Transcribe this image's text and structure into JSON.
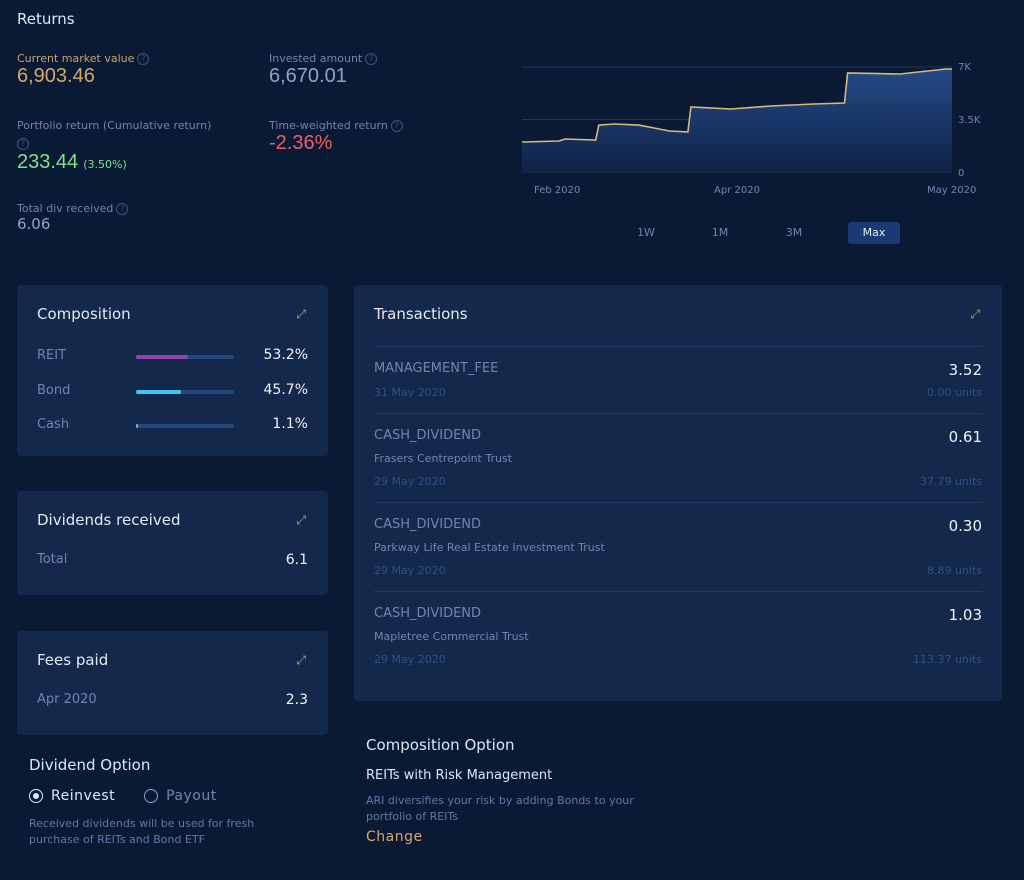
{
  "returns": {
    "title": "Returns",
    "current_market_value": {
      "label": "Current market value",
      "value": "6,903.46"
    },
    "invested_amount": {
      "label": "Invested amount",
      "value": "6,670.01"
    },
    "portfolio_return": {
      "label": "Portfolio return (Cumulative return)",
      "value": "233.44",
      "percent": "(3.50%)"
    },
    "time_weighted_return": {
      "label": "Time-weighted return",
      "value": "-2.36%"
    },
    "total_div": {
      "label": "Total div received",
      "value": "6.06"
    },
    "help_icon": "?"
  },
  "chart_data": {
    "type": "area",
    "x_tick_labels": [
      "Feb 2020",
      "Apr 2020",
      "May 2020"
    ],
    "y_tick_labels": [
      "7K",
      "3.5K",
      "0"
    ],
    "ylim": [
      0,
      7000
    ],
    "grid": true,
    "line_color": "#d9b77e",
    "points": [
      [
        "2020-01-20",
        2000
      ],
      [
        "2020-02-01",
        2070
      ],
      [
        "2020-02-03",
        2200
      ],
      [
        "2020-02-13",
        2130
      ],
      [
        "2020-02-14",
        3130
      ],
      [
        "2020-02-19",
        3200
      ],
      [
        "2020-02-27",
        3130
      ],
      [
        "2020-03-03",
        2930
      ],
      [
        "2020-03-08",
        2730
      ],
      [
        "2020-03-14",
        2670
      ],
      [
        "2020-03-15",
        4330
      ],
      [
        "2020-03-28",
        4200
      ],
      [
        "2020-04-10",
        4400
      ],
      [
        "2020-04-24",
        4530
      ],
      [
        "2020-05-04",
        4600
      ],
      [
        "2020-05-05",
        6600
      ],
      [
        "2020-05-22",
        6530
      ],
      [
        "2020-05-25",
        6600
      ],
      [
        "2020-06-06",
        6870
      ],
      [
        "2020-06-08",
        6870
      ]
    ]
  },
  "ranges": [
    {
      "label": "1W"
    },
    {
      "label": "1M"
    },
    {
      "label": "3M"
    },
    {
      "label": "Max",
      "active": true
    }
  ],
  "composition": {
    "title": "Composition",
    "items": [
      {
        "label": "REIT",
        "value": "53.2%",
        "pct": 53.2,
        "color": "#8e44ad"
      },
      {
        "label": "Bond",
        "value": "45.7%",
        "pct": 45.7,
        "color": "#3fc6ef"
      },
      {
        "label": "Cash",
        "value": "1.1%",
        "pct": 1.1,
        "color": "#9aa6b8"
      }
    ]
  },
  "dividends": {
    "title": "Dividends received",
    "label": "Total",
    "value": "6.1"
  },
  "fees": {
    "title": "Fees paid",
    "label": "Apr 2020",
    "value": "2.3"
  },
  "transactions": {
    "title": "Transactions",
    "items": [
      {
        "type": "MANAGEMENT_FEE",
        "amount": "3.52",
        "name": "",
        "date": "31 May 2020",
        "units": "0.00 units"
      },
      {
        "type": "CASH_DIVIDEND",
        "amount": "0.61",
        "name": "Frasers Centrepoint Trust",
        "date": "29 May 2020",
        "units": "37.79 units"
      },
      {
        "type": "CASH_DIVIDEND",
        "amount": "0.30",
        "name": "Parkway Life Real Estate Investment Trust",
        "date": "29 May 2020",
        "units": "8.89 units"
      },
      {
        "type": "CASH_DIVIDEND",
        "amount": "1.03",
        "name": "Mapletree Commercial Trust",
        "date": "29 May 2020",
        "units": "113.37 units"
      }
    ]
  },
  "dividend_option": {
    "title": "Dividend Option",
    "options": [
      "Reinvest",
      "Payout"
    ],
    "selected": "Reinvest",
    "note": "Received dividends will be used for fresh purchase of REITs and Bond ETF"
  },
  "composition_option": {
    "title": "Composition Option",
    "name": "REITs with Risk Management",
    "desc": "ARI diversifies your risk by adding Bonds to your portfolio of REITs",
    "change": "Change"
  },
  "expand_icon": "expand-arrows"
}
